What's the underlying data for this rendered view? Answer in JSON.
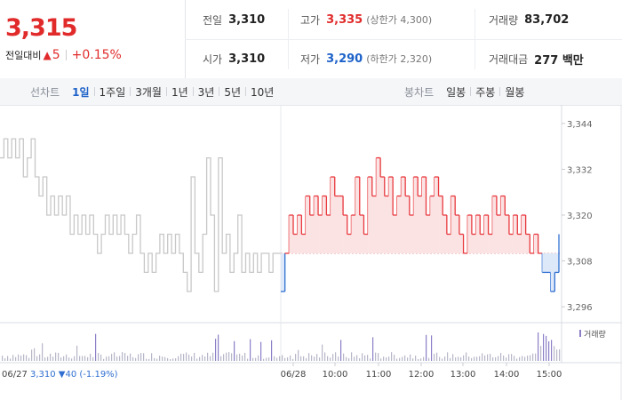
{
  "quote": {
    "price": "3,315",
    "change_label": "전일대비",
    "change_arrow": "▲",
    "change_value": "5",
    "change_pct": "+0.15%",
    "stats": {
      "prev_close_label": "전일",
      "prev_close": "3,310",
      "open_label": "시가",
      "open": "3,310",
      "high_label": "고가",
      "high": "3,335",
      "upper_limit": "(상한가 4,300)",
      "low_label": "저가",
      "low": "3,290",
      "lower_limit": "(하한가 2,320)",
      "volume_label": "거래량",
      "volume": "83,702",
      "amount_label": "거래대금",
      "amount": "277 백만"
    }
  },
  "tabs": {
    "line_title": "선차트",
    "line": [
      "1일",
      "1주일",
      "3개월",
      "1년",
      "3년",
      "5년",
      "10년"
    ],
    "line_active": "1일",
    "candle_title": "봉차트",
    "candle": [
      "일봉",
      "주봉",
      "월봉"
    ]
  },
  "chart_data": {
    "type": "line",
    "colors": {
      "up": "#e8383d",
      "down": "#2f6fd1",
      "prev_day": "#c8c8c8",
      "volume": "#b7b7c9",
      "volume_hi": "#8c7fc7"
    },
    "y_ticks": [
      "3,344",
      "3,332",
      "3,320",
      "3,308",
      "3,296"
    ],
    "ylim": [
      3293,
      3347
    ],
    "base_price": 3310,
    "x_ticks": [
      "06/28",
      "10:00",
      "11:00",
      "12:00",
      "13:00",
      "14:00",
      "15:00"
    ],
    "prev_day_label": "06/27",
    "prev_day_summary": {
      "close": "3,310",
      "change": "▼40",
      "change_pct": "(-1.19%)"
    },
    "volume_legend": "거래량",
    "prev_day_series": [
      3335,
      3340,
      3335,
      3340,
      3335,
      3340,
      3330,
      3335,
      3340,
      3330,
      3325,
      3330,
      3320,
      3325,
      3320,
      3325,
      3320,
      3325,
      3315,
      3320,
      3315,
      3320,
      3315,
      3320,
      3315,
      3310,
      3315,
      3320,
      3315,
      3320,
      3315,
      3320,
      3315,
      3310,
      3315,
      3320,
      3310,
      3305,
      3310,
      3305,
      3310,
      3315,
      3310,
      3315,
      3310,
      3315,
      3310,
      3305,
      3300,
      3330,
      3310,
      3305,
      3315,
      3335,
      3320,
      3300,
      3335,
      3310,
      3315,
      3305,
      3310,
      3320,
      3305,
      3310,
      3305,
      3310,
      3305,
      3310,
      3310,
      3305,
      3310,
      3310,
      3310
    ],
    "today_series": [
      3300,
      3310,
      3320,
      3315,
      3320,
      3315,
      3325,
      3320,
      3325,
      3320,
      3325,
      3320,
      3330,
      3325,
      3325,
      3320,
      3315,
      3320,
      3330,
      3320,
      3315,
      3330,
      3325,
      3335,
      3330,
      3325,
      3330,
      3320,
      3325,
      3330,
      3325,
      3320,
      3330,
      3325,
      3330,
      3320,
      3325,
      3330,
      3325,
      3320,
      3315,
      3325,
      3320,
      3315,
      3310,
      3320,
      3315,
      3320,
      3315,
      3320,
      3315,
      3325,
      3320,
      3325,
      3320,
      3315,
      3320,
      3315,
      3320,
      3315,
      3310,
      3315,
      3310,
      3305,
      3305,
      3300,
      3305,
      3315
    ]
  }
}
